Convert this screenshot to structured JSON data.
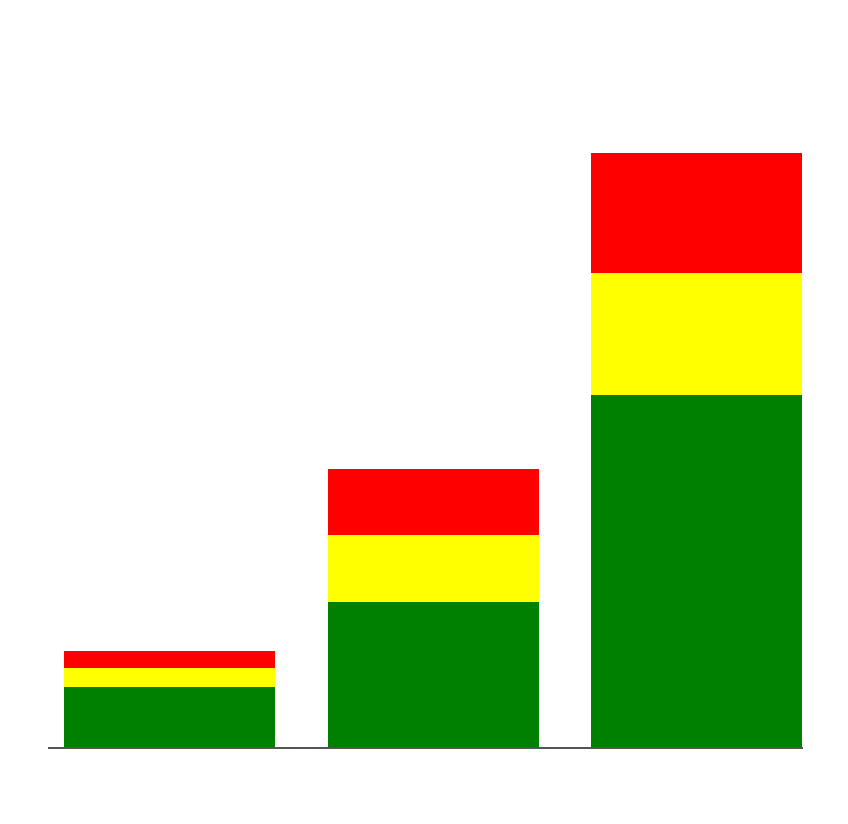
{
  "chart_data": {
    "type": "bar",
    "stacked": true,
    "categories": [
      "",
      "",
      ""
    ],
    "series": [
      {
        "values": [
          61,
          146,
          353
        ],
        "color": "#008000"
      },
      {
        "values": [
          19,
          67,
          122
        ],
        "color": "#ffff00"
      },
      {
        "values": [
          17,
          66,
          120
        ],
        "color": "#ff0000"
      }
    ],
    "ylim": [
      0,
      670
    ],
    "grid": false,
    "legend": "none",
    "axis_color": "#555555",
    "title": "",
    "xlabel": "",
    "ylabel": ""
  }
}
